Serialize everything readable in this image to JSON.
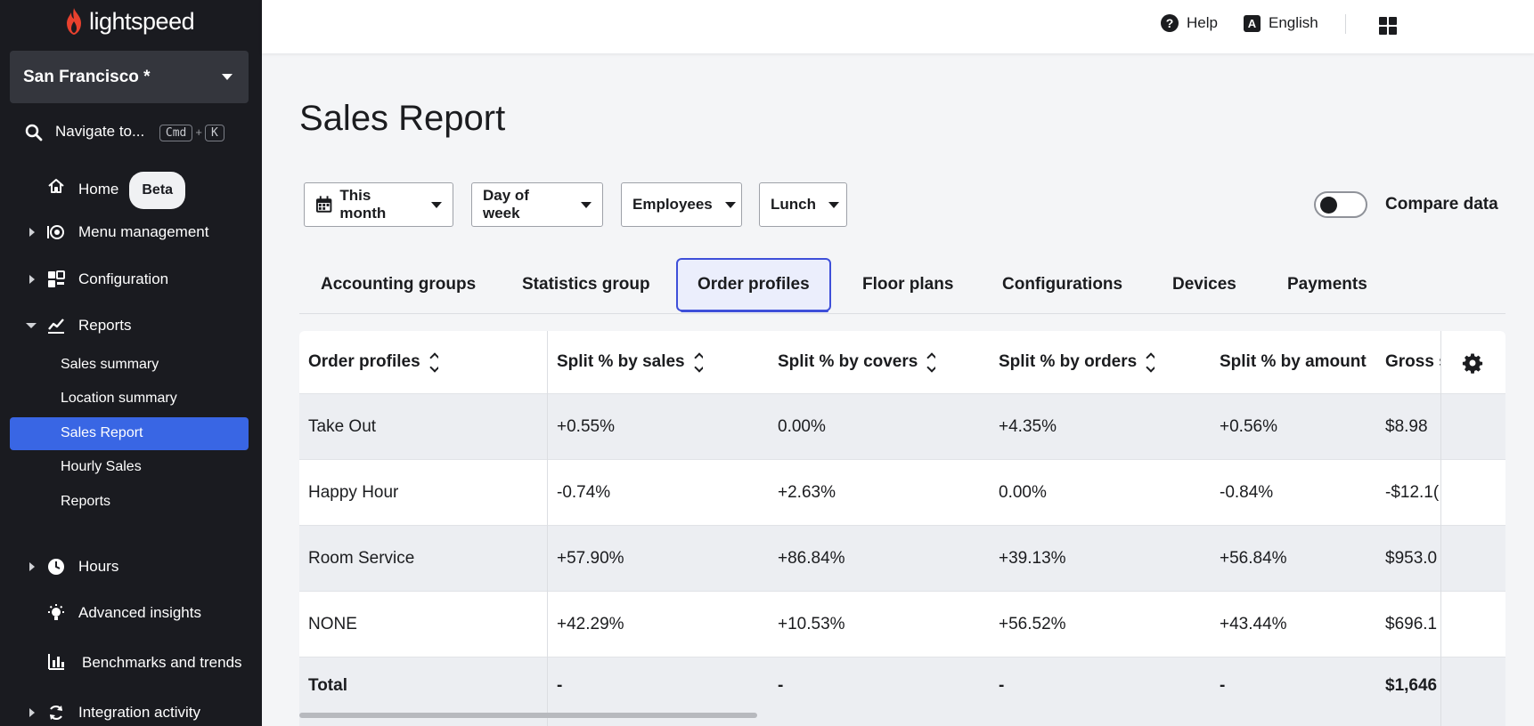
{
  "brand": {
    "name": "lightspeed",
    "color": "#e8412e"
  },
  "sidebar": {
    "location": "San Francisco *",
    "navigate": {
      "label": "Navigate to...",
      "key1": "Cmd",
      "plus": "+",
      "key2": "K"
    },
    "items": [
      {
        "label": "Home",
        "badge": "Beta",
        "icon": "home-icon"
      },
      {
        "label": "Menu management",
        "icon": "menu-management-icon"
      },
      {
        "label": "Configuration",
        "icon": "configuration-icon"
      },
      {
        "label": "Reports",
        "icon": "reports-icon"
      },
      {
        "label": "Hours",
        "icon": "clock-icon"
      },
      {
        "label": "Advanced insights",
        "icon": "lightbulb-icon"
      },
      {
        "label": "Benchmarks and trends",
        "icon": "bar-chart-icon"
      },
      {
        "label": "Integration activity",
        "icon": "sync-icon"
      }
    ],
    "report_sub": [
      "Sales summary",
      "Location summary",
      "Sales Report",
      "Hourly Sales",
      "Reports"
    ]
  },
  "topbar": {
    "help": "Help",
    "lang_glyph": "A",
    "language": "English"
  },
  "page": {
    "title": "Sales Report",
    "filters": [
      "This month",
      "Day of week",
      "Employees",
      "Lunch"
    ],
    "compare": "Compare data"
  },
  "tabs": [
    "Accounting groups",
    "Statistics group",
    "Order profiles",
    "Floor plans",
    "Configurations",
    "Devices",
    "Payments"
  ],
  "table": {
    "headers": [
      "Order profiles",
      "Split % by sales",
      "Split % by covers",
      "Split % by orders",
      "Split % by amount",
      "Gross s"
    ],
    "rows": [
      [
        "Take Out",
        "+0.55%",
        "0.00%",
        "+4.35%",
        "+0.56%",
        "$8.98"
      ],
      [
        "Happy Hour",
        "-0.74%",
        "+2.63%",
        "0.00%",
        "-0.84%",
        "-$12.1("
      ],
      [
        "Room Service",
        "+57.90%",
        "+86.84%",
        "+39.13%",
        "+56.84%",
        "$953.0"
      ],
      [
        "NONE",
        "+42.29%",
        "+10.53%",
        "+56.52%",
        "+43.44%",
        "$696.1"
      ]
    ],
    "total": [
      "Total",
      "-",
      "-",
      "-",
      "-",
      "$1,646"
    ]
  }
}
